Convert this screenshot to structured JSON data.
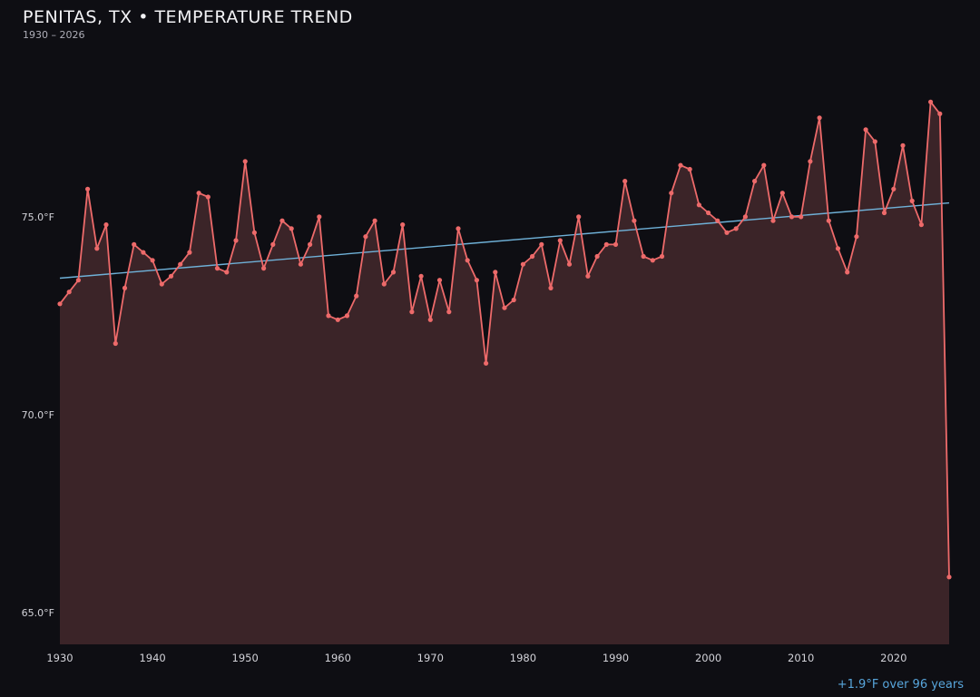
{
  "chart_data": {
    "type": "line",
    "title": "PENITAS, TX • TEMPERATURE TREND",
    "subtitle": "1930 – 2026",
    "annotation": "+1.9°F over 96 years",
    "unit": "°F",
    "x_start": 1930,
    "x_end": 2026,
    "ylim": [
      64.2,
      79.1
    ],
    "values": [
      72.8,
      73.1,
      73.4,
      75.7,
      74.2,
      74.8,
      71.8,
      73.2,
      74.3,
      74.1,
      73.9,
      73.3,
      73.5,
      73.8,
      74.1,
      75.6,
      75.5,
      73.7,
      73.6,
      74.4,
      76.4,
      74.6,
      73.7,
      74.3,
      74.9,
      74.7,
      73.8,
      74.3,
      75.0,
      72.5,
      72.4,
      72.5,
      73.0,
      74.5,
      74.9,
      73.3,
      73.6,
      74.8,
      72.6,
      73.5,
      72.4,
      73.4,
      72.6,
      74.7,
      73.9,
      73.4,
      71.3,
      73.6,
      72.7,
      72.9,
      73.8,
      74.0,
      74.3,
      73.2,
      74.4,
      73.8,
      75.0,
      73.5,
      74.0,
      74.3,
      74.3,
      75.9,
      74.9,
      74.0,
      73.9,
      74.0,
      75.6,
      76.3,
      76.2,
      75.3,
      75.1,
      74.9,
      74.6,
      74.7,
      75.0,
      75.9,
      76.3,
      74.9,
      75.6,
      75.0,
      75.0,
      76.4,
      77.5,
      74.9,
      74.2,
      73.6,
      74.5,
      77.2,
      76.9,
      75.1,
      75.7,
      76.8,
      75.4,
      74.8,
      77.9,
      77.6,
      65.9
    ],
    "trend": {
      "start_value": 73.45,
      "end_value": 75.35,
      "change": "+1.9°F",
      "span_years": 96
    },
    "y_ticks": [
      {
        "value": 75.0,
        "label": "75.0°F"
      },
      {
        "value": 70.0,
        "label": "70.0°F"
      },
      {
        "value": 65.0,
        "label": "65.0°F"
      }
    ],
    "x_ticks": [
      1930,
      1940,
      1950,
      1960,
      1970,
      1980,
      1990,
      2000,
      2010,
      2020
    ],
    "legend": "none",
    "grid": "off",
    "colors": {
      "background": "#0e0e13",
      "line": "#ed6a6a",
      "point": "#ed6a6a",
      "area": "#3b2428",
      "trend": "#6fb1d8",
      "annotation": "#58a6dc",
      "tick_text": "#d2d2d8"
    }
  }
}
